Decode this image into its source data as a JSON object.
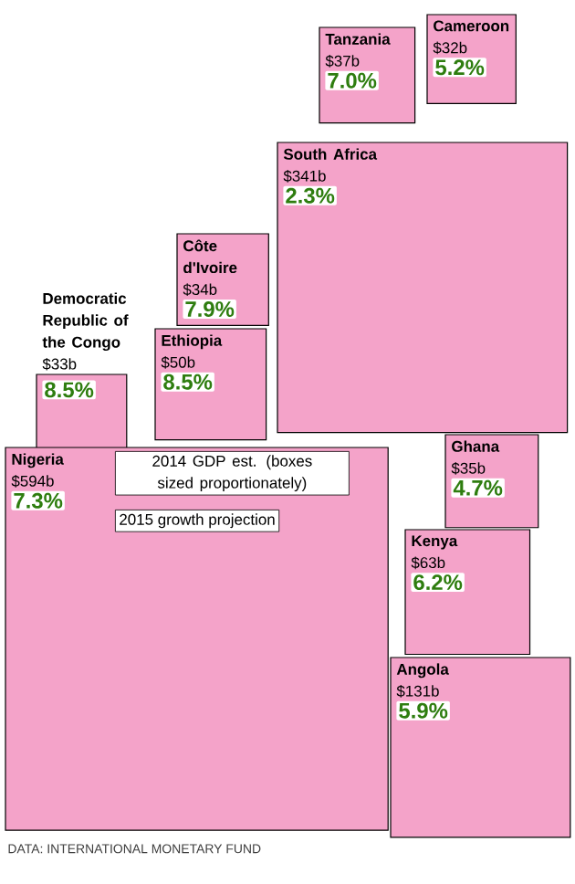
{
  "chart_data": {
    "type": "other",
    "categories": [
      "Tanzania",
      "Cameroon",
      "South Africa",
      "Côte d'Ivoire",
      "Democratic Republic of the Congo",
      "Ethiopia",
      "Nigeria",
      "Ghana",
      "Kenya",
      "Angola"
    ],
    "series": [
      {
        "name": "2014 GDP est. (boxes sized proportionately)",
        "color": "#f4a3c9",
        "values": [
          37,
          32,
          341,
          34,
          33,
          50,
          594,
          35,
          63,
          131
        ],
        "value_labels": [
          "$37b",
          "$32b",
          "$341b",
          "$34b",
          "$33b",
          "$50b",
          "$594b",
          "$35b",
          "$63b",
          "$131b"
        ]
      },
      {
        "name": "2015 growth projection",
        "values": [
          7.0,
          5.2,
          2.3,
          7.9,
          8.5,
          8.5,
          7.3,
          4.7,
          6.2,
          5.9
        ],
        "value_labels": [
          "7.0%",
          "5.2%",
          "2.3%",
          "7.9%",
          "8.5%",
          "8.5%",
          "7.3%",
          "4.7%",
          "6.2%",
          "5.9%"
        ]
      }
    ],
    "annotations": [
      "DATA: INTERNATIONAL MONETARY FUND"
    ]
  }
}
